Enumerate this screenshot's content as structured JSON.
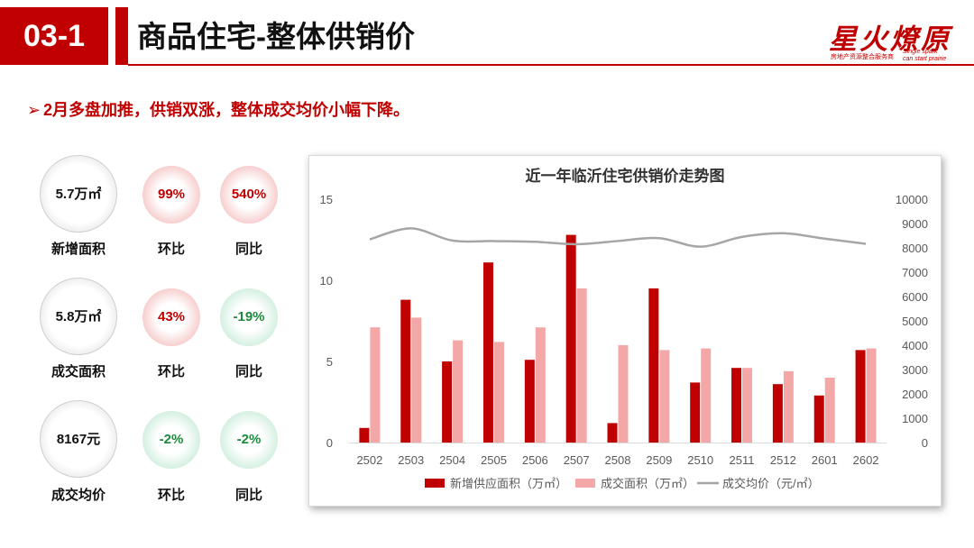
{
  "header": {
    "section_number": "03-1",
    "title": "商品住宅-整体供销价"
  },
  "logo": {
    "main": "星火燎原",
    "cn_sub": "房地产资源整合服务商",
    "en_sub1": "Single spark",
    "en_sub2": "can start prairie"
  },
  "headline": {
    "bullet": "➢",
    "text": "2月多盘加推，供销双涨，整体成交均价小幅下降。"
  },
  "metrics": [
    {
      "value": "5.7万㎡",
      "label": "新增面积",
      "mom": "99%",
      "mom_label": "环比",
      "mom_color": "#c00000",
      "yoy": "540%",
      "yoy_label": "同比",
      "yoy_color": "#c00000"
    },
    {
      "value": "5.8万㎡",
      "label": "成交面积",
      "mom": "43%",
      "mom_label": "环比",
      "mom_color": "#c00000",
      "yoy": "-19%",
      "yoy_label": "同比",
      "yoy_color": "#1a8a3a"
    },
    {
      "value": "8167元",
      "label": "成交均价",
      "mom": "-2%",
      "mom_label": "环比",
      "mom_color": "#1a8a3a",
      "yoy": "-2%",
      "yoy_label": "同比",
      "yoy_color": "#1a8a3a"
    }
  ],
  "chart_data": {
    "type": "bar",
    "title": "近一年临沂住宅供销价走势图",
    "categories": [
      "2502",
      "2503",
      "2504",
      "2505",
      "2506",
      "2507",
      "2508",
      "2509",
      "2510",
      "2511",
      "2512",
      "2601",
      "2602"
    ],
    "series": [
      {
        "name": "新增供应面积（万㎡）",
        "kind": "bar",
        "axis": "left",
        "color": "#c00000",
        "values": [
          0.9,
          8.8,
          5.0,
          11.1,
          5.1,
          12.8,
          1.2,
          9.5,
          3.7,
          4.6,
          3.6,
          2.9,
          5.7
        ]
      },
      {
        "name": "成交面积（万㎡）",
        "kind": "bar",
        "axis": "left",
        "color": "#f4a7a7",
        "values": [
          7.1,
          7.7,
          6.3,
          6.2,
          7.1,
          9.5,
          6.0,
          5.7,
          5.8,
          4.6,
          4.4,
          4.0,
          5.8
        ]
      },
      {
        "name": "成交均价（元/㎡）",
        "kind": "line",
        "axis": "right",
        "color": "#a6a6a6",
        "values": [
          8350,
          8800,
          8300,
          8280,
          8250,
          8150,
          8280,
          8400,
          8050,
          8450,
          8600,
          8380,
          8167
        ]
      }
    ],
    "ylim_left": [
      0,
      15
    ],
    "yticks_left": [
      0,
      5,
      10,
      15
    ],
    "ylim_right": [
      0,
      10000
    ],
    "yticks_right": [
      0,
      1000,
      2000,
      3000,
      4000,
      5000,
      6000,
      7000,
      8000,
      9000,
      10000
    ],
    "grid": false,
    "legend_position": "bottom"
  }
}
